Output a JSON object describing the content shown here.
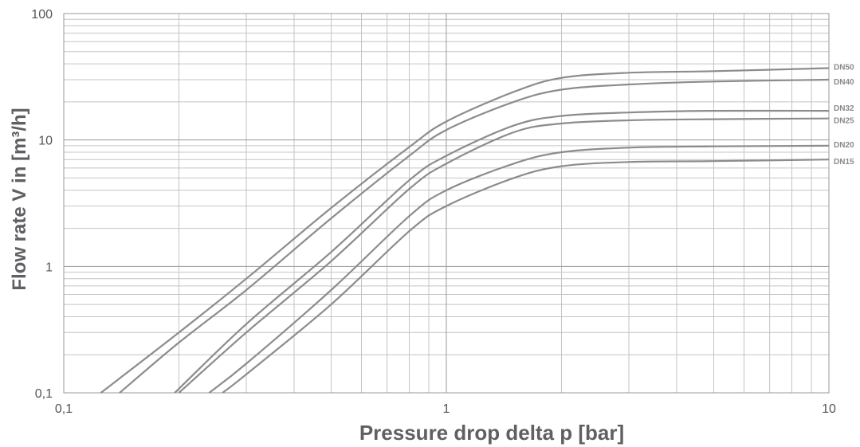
{
  "chart_data": {
    "type": "line",
    "xlabel": "Pressure drop delta p [bar]",
    "ylabel": "Flow rate V in [m³/h]",
    "xscale": "log",
    "yscale": "log",
    "xlim": [
      0.1,
      10
    ],
    "ylim": [
      0.1,
      100
    ],
    "grid": true,
    "x_tick_labels": [
      {
        "value": 0.1,
        "label": "0,1"
      },
      {
        "value": 1,
        "label": "1"
      },
      {
        "value": 10,
        "label": "10"
      }
    ],
    "y_tick_labels": [
      {
        "value": 0.1,
        "label": "0,1"
      },
      {
        "value": 1,
        "label": "1"
      },
      {
        "value": 10,
        "label": "10"
      },
      {
        "value": 100,
        "label": "100"
      }
    ],
    "line_color": "#8c8c8c",
    "series": [
      {
        "name": "DN50",
        "points": [
          [
            0.125,
            0.1
          ],
          [
            0.2,
            0.3
          ],
          [
            0.3,
            0.8
          ],
          [
            0.5,
            2.9
          ],
          [
            0.8,
            8.8
          ],
          [
            1.0,
            14
          ],
          [
            1.5,
            24
          ],
          [
            2.0,
            31
          ],
          [
            3.0,
            34
          ],
          [
            5.0,
            35
          ],
          [
            10,
            37
          ]
        ]
      },
      {
        "name": "DN40",
        "points": [
          [
            0.14,
            0.1
          ],
          [
            0.2,
            0.25
          ],
          [
            0.3,
            0.65
          ],
          [
            0.5,
            2.4
          ],
          [
            0.8,
            7.5
          ],
          [
            1.0,
            12
          ],
          [
            1.5,
            20
          ],
          [
            2.0,
            25
          ],
          [
            3.0,
            27.5
          ],
          [
            5.0,
            29
          ],
          [
            10,
            30
          ]
        ]
      },
      {
        "name": "DN32",
        "points": [
          [
            0.195,
            0.1
          ],
          [
            0.3,
            0.35
          ],
          [
            0.5,
            1.3
          ],
          [
            0.8,
            4.8
          ],
          [
            1.0,
            7.5
          ],
          [
            1.5,
            13
          ],
          [
            2.0,
            15.5
          ],
          [
            3.0,
            16.5
          ],
          [
            5.0,
            17
          ],
          [
            10,
            17
          ]
        ]
      },
      {
        "name": "DN25",
        "points": [
          [
            0.2,
            0.1
          ],
          [
            0.3,
            0.3
          ],
          [
            0.5,
            1.1
          ],
          [
            0.8,
            4.1
          ],
          [
            1.0,
            6.5
          ],
          [
            1.5,
            11.5
          ],
          [
            2.0,
            13.5
          ],
          [
            3.0,
            14.3
          ],
          [
            5.0,
            14.6
          ],
          [
            10,
            14.8
          ]
        ]
      },
      {
        "name": "DN20",
        "points": [
          [
            0.24,
            0.1
          ],
          [
            0.3,
            0.17
          ],
          [
            0.5,
            0.65
          ],
          [
            0.8,
            2.5
          ],
          [
            1.0,
            4.0
          ],
          [
            1.5,
            6.5
          ],
          [
            2.0,
            8.0
          ],
          [
            3.0,
            8.7
          ],
          [
            5.0,
            8.9
          ],
          [
            10,
            9.0
          ]
        ]
      },
      {
        "name": "DN15",
        "points": [
          [
            0.26,
            0.1
          ],
          [
            0.3,
            0.14
          ],
          [
            0.5,
            0.5
          ],
          [
            0.8,
            1.9
          ],
          [
            1.0,
            3.0
          ],
          [
            1.5,
            5.0
          ],
          [
            2.0,
            6.2
          ],
          [
            3.0,
            6.7
          ],
          [
            5.0,
            6.8
          ],
          [
            10,
            7.0
          ]
        ]
      }
    ]
  }
}
